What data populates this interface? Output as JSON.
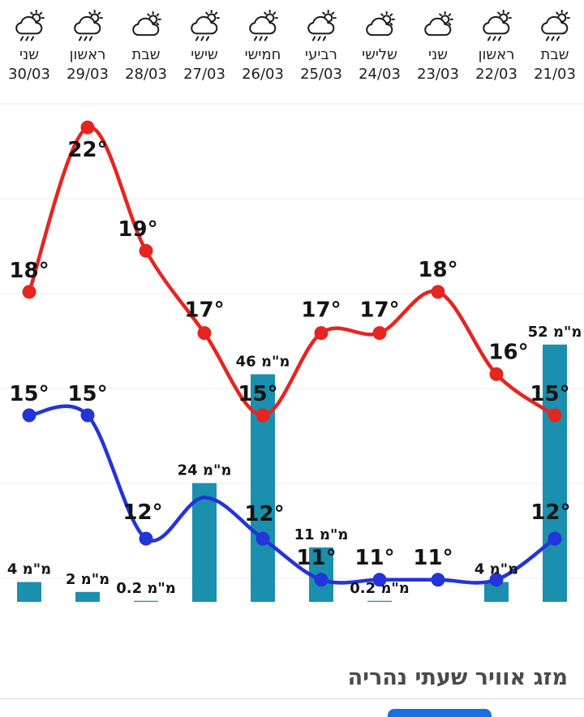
{
  "header": {
    "days": [
      {
        "name": "שני",
        "date": "30/03",
        "icon": "rain"
      },
      {
        "name": "ראשון",
        "date": "29/03",
        "icon": "rain"
      },
      {
        "name": "שבת",
        "date": "28/03",
        "icon": "cloud"
      },
      {
        "name": "שישי",
        "date": "27/03",
        "icon": "rain"
      },
      {
        "name": "חמישי",
        "date": "26/03",
        "icon": "rain"
      },
      {
        "name": "רביעי",
        "date": "25/03",
        "icon": "rain"
      },
      {
        "name": "שלישי",
        "date": "24/03",
        "icon": "cloud"
      },
      {
        "name": "שני",
        "date": "23/03",
        "icon": "cloud"
      },
      {
        "name": "ראשון",
        "date": "22/03",
        "icon": "rain"
      },
      {
        "name": "שבת",
        "date": "21/03",
        "icon": "rain"
      }
    ]
  },
  "chart_data": {
    "type": "line",
    "direction": "rtl",
    "grid": true,
    "legend": false,
    "unit": "°",
    "categories": [
      "30/03",
      "29/03",
      "28/03",
      "27/03",
      "26/03",
      "25/03",
      "24/03",
      "23/03",
      "22/03",
      "21/03"
    ],
    "series": [
      {
        "name": "high-temp",
        "color": "#e62420",
        "values": [
          18,
          22,
          19,
          17,
          15,
          17,
          17,
          18,
          16,
          15
        ],
        "labels": [
          "18°",
          "22°",
          "19°",
          "17°",
          "15°",
          "17°",
          "17°",
          "18°",
          "16°",
          "15°"
        ],
        "dots": [
          true,
          true,
          true,
          true,
          true,
          true,
          true,
          true,
          true,
          true
        ]
      },
      {
        "name": "low-temp",
        "color": "#2334d8",
        "values": [
          15,
          15,
          12,
          13,
          12,
          11,
          11,
          11,
          11,
          12
        ],
        "labels": [
          "15°",
          "15°",
          "12°",
          null,
          "12°",
          "11°",
          "11°",
          "11°",
          null,
          "12°"
        ],
        "dots": [
          true,
          true,
          true,
          false,
          true,
          true,
          true,
          true,
          true,
          true
        ]
      }
    ],
    "precipitation": {
      "name": "precipitation-mm",
      "color": "#1a8fae",
      "unit": "מ\"מ",
      "values": [
        4,
        2,
        0.2,
        24,
        46,
        11,
        0.2,
        null,
        4,
        52
      ],
      "labels": [
        "מ\"מ 4",
        "מ\"מ 2",
        "מ\"מ 0.2",
        "מ\"מ 24",
        "מ\"מ 46",
        "מ\"מ 11",
        "מ\"מ 0.2",
        null,
        "מ\"מ 4",
        "מ\"מ 52"
      ]
    }
  },
  "footer": {
    "title": "מזג אוויר שעתי נהריה"
  },
  "colors": {
    "high_temp": "#e62420",
    "low_temp": "#2334d8",
    "precip_bar": "#1a8fae",
    "gridline": "#ececec",
    "text": "#141414",
    "bottom_button": "#1a6fe0"
  }
}
